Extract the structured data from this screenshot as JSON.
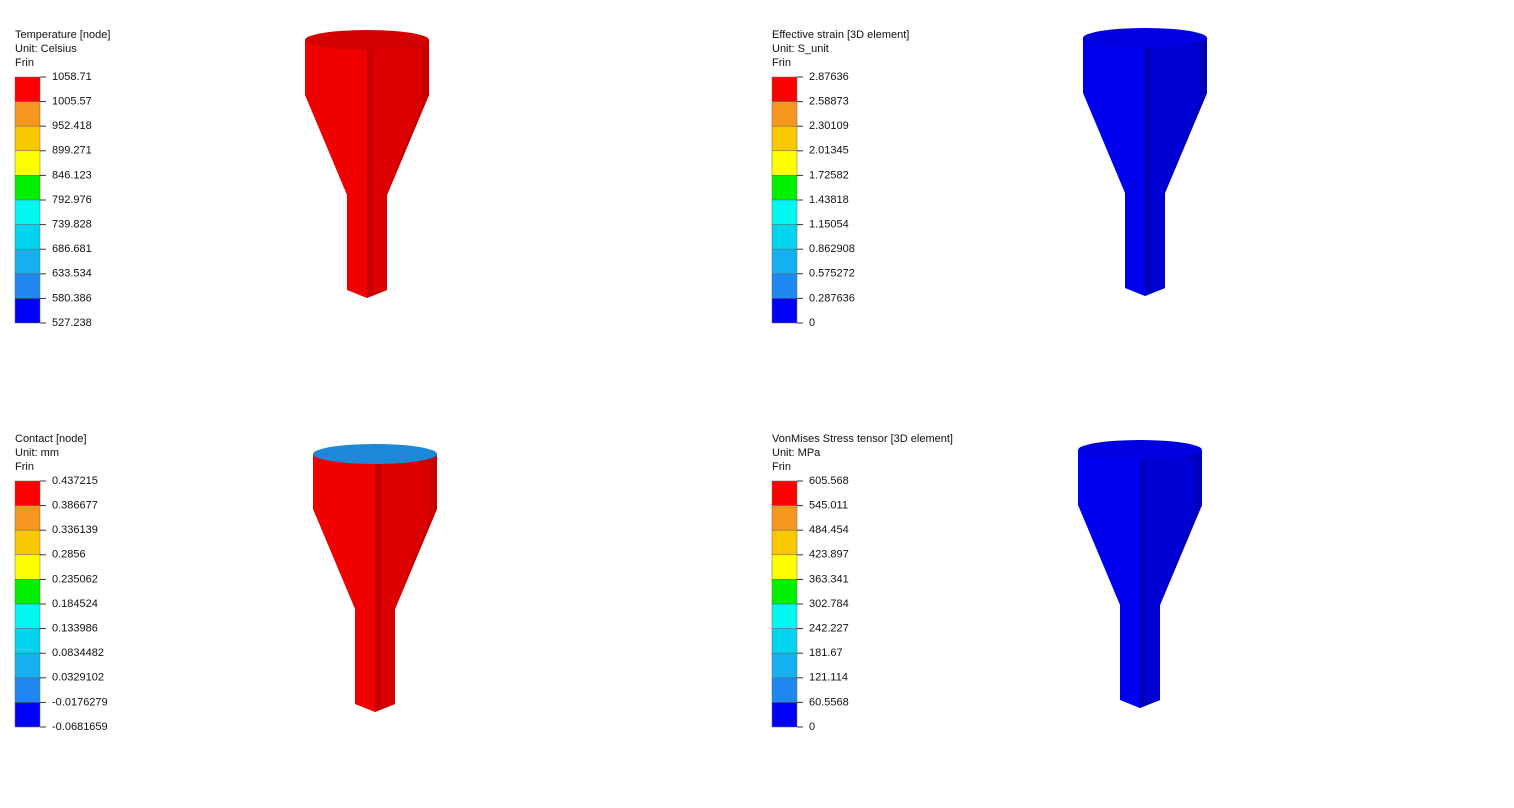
{
  "panels": [
    {
      "title": "Temperature [node]",
      "unit": "Unit: Celsius",
      "label": "Frin",
      "ticks": [
        "1058.71",
        "1005.57",
        "952.418",
        "899.271",
        "846.123",
        "792.976",
        "739.828",
        "686.681",
        "633.534",
        "580.386",
        "527.238"
      ]
    },
    {
      "title": "Effective strain [3D element]",
      "unit": "Unit: S_unit",
      "label": "Frin",
      "ticks": [
        "2.87636",
        "2.58873",
        "2.30109",
        "2.01345",
        "1.72582",
        "1.43818",
        "1.15054",
        "0.862908",
        "0.575272",
        "0.287636",
        "0"
      ]
    },
    {
      "title": "Contact [node]",
      "unit": "Unit: mm",
      "label": "Frin",
      "ticks": [
        "0.437215",
        "0.386677",
        "0.336139",
        "0.2856",
        "0.235062",
        "0.184524",
        "0.133986",
        "0.0834482",
        "0.0329102",
        "-0.0176279",
        "-0.0681659"
      ]
    },
    {
      "title": "VonMises Stress tensor [3D element]",
      "unit": "Unit: MPa",
      "label": "Frin",
      "ticks": [
        "605.568",
        "545.011",
        "484.454",
        "423.897",
        "363.341",
        "302.784",
        "242.227",
        "181.67",
        "121.114",
        "60.5568",
        "0"
      ]
    }
  ]
}
